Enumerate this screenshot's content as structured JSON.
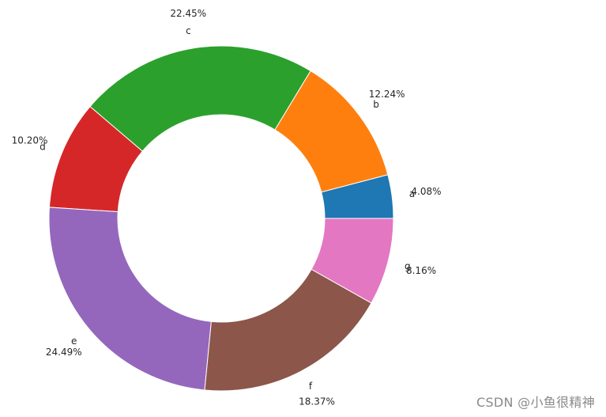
{
  "chart_data": {
    "type": "pie",
    "variant": "donut",
    "title": "",
    "start": "right, counterclockwise",
    "slices": [
      {
        "label": "a",
        "value": 4.08,
        "display": "4.08%",
        "color": "#1f77b4"
      },
      {
        "label": "b",
        "value": 12.24,
        "display": "12.24%",
        "color": "#ff7f0e"
      },
      {
        "label": "c",
        "value": 22.45,
        "display": "22.45%",
        "color": "#2ca02c"
      },
      {
        "label": "d",
        "value": 10.2,
        "display": "10.20%",
        "color": "#d62728"
      },
      {
        "label": "e",
        "value": 24.49,
        "display": "24.49%",
        "color": "#9467bd"
      },
      {
        "label": "f",
        "value": 18.37,
        "display": "18.37%",
        "color": "#8c564b"
      },
      {
        "label": "g",
        "value": 8.16,
        "display": "8.16%",
        "color": "#e377c2"
      }
    ]
  },
  "watermark": "CSDN @小鱼很精神"
}
